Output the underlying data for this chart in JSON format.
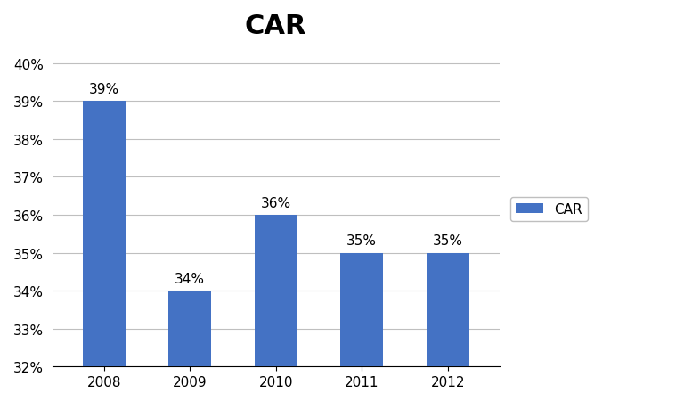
{
  "title": "CAR",
  "categories": [
    "2008",
    "2009",
    "2010",
    "2011",
    "2012"
  ],
  "values": [
    39,
    34,
    36,
    35,
    35
  ],
  "bar_color": "#4472C4",
  "ylim_min": 32,
  "ylim_max": 40,
  "yticks": [
    32,
    33,
    34,
    35,
    36,
    37,
    38,
    39,
    40
  ],
  "legend_label": "CAR",
  "title_fontsize": 22,
  "tick_fontsize": 11,
  "label_fontsize": 11,
  "background_color": "#FFFFFF",
  "grid_color": "#BFBFBF"
}
